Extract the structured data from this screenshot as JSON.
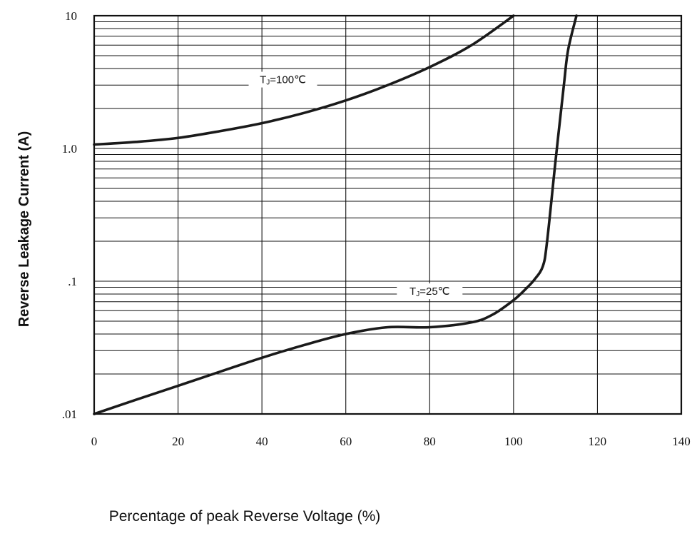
{
  "chart_data": {
    "type": "line",
    "title": "",
    "xlabel": "Percentage of peak Reverse Voltage (%)",
    "ylabel": "Reverse Leakage Current (A)",
    "x_scale": "linear",
    "y_scale": "log",
    "xlim": [
      0,
      140
    ],
    "ylim": [
      0.01,
      10
    ],
    "x_ticks": [
      0,
      20,
      40,
      60,
      80,
      100,
      120,
      140
    ],
    "x_tick_labels": [
      "0",
      "20",
      "40",
      "60",
      "80",
      "100",
      "120",
      "140"
    ],
    "y_ticks": [
      0.01,
      0.1,
      1,
      10
    ],
    "y_tick_labels": [
      ".01",
      ".1",
      "1.0",
      "10"
    ],
    "grid": true,
    "series": [
      {
        "name": "TJ=100℃",
        "label_main": "T",
        "label_sub": "J",
        "label_rest": "=100℃",
        "label_at": [
          45,
          3.3
        ],
        "x": [
          0,
          10,
          20,
          30,
          40,
          50,
          60,
          70,
          80,
          90,
          100
        ],
        "y": [
          1.07,
          1.12,
          1.2,
          1.35,
          1.55,
          1.85,
          2.3,
          3.0,
          4.1,
          6.0,
          10.0
        ]
      },
      {
        "name": "TJ=25℃",
        "label_main": "T",
        "label_sub": "J",
        "label_rest": "=25℃",
        "label_at": [
          80,
          0.084
        ],
        "x": [
          0,
          10,
          20,
          30,
          40,
          50,
          60,
          70,
          80,
          90,
          95,
          100,
          103,
          105,
          107,
          108,
          110,
          112,
          113,
          115
        ],
        "y": [
          0.01,
          0.0128,
          0.0163,
          0.0208,
          0.0265,
          0.033,
          0.04,
          0.045,
          0.045,
          0.049,
          0.056,
          0.072,
          0.088,
          0.103,
          0.13,
          0.2,
          0.8,
          3.0,
          5.5,
          10.0
        ]
      }
    ]
  }
}
